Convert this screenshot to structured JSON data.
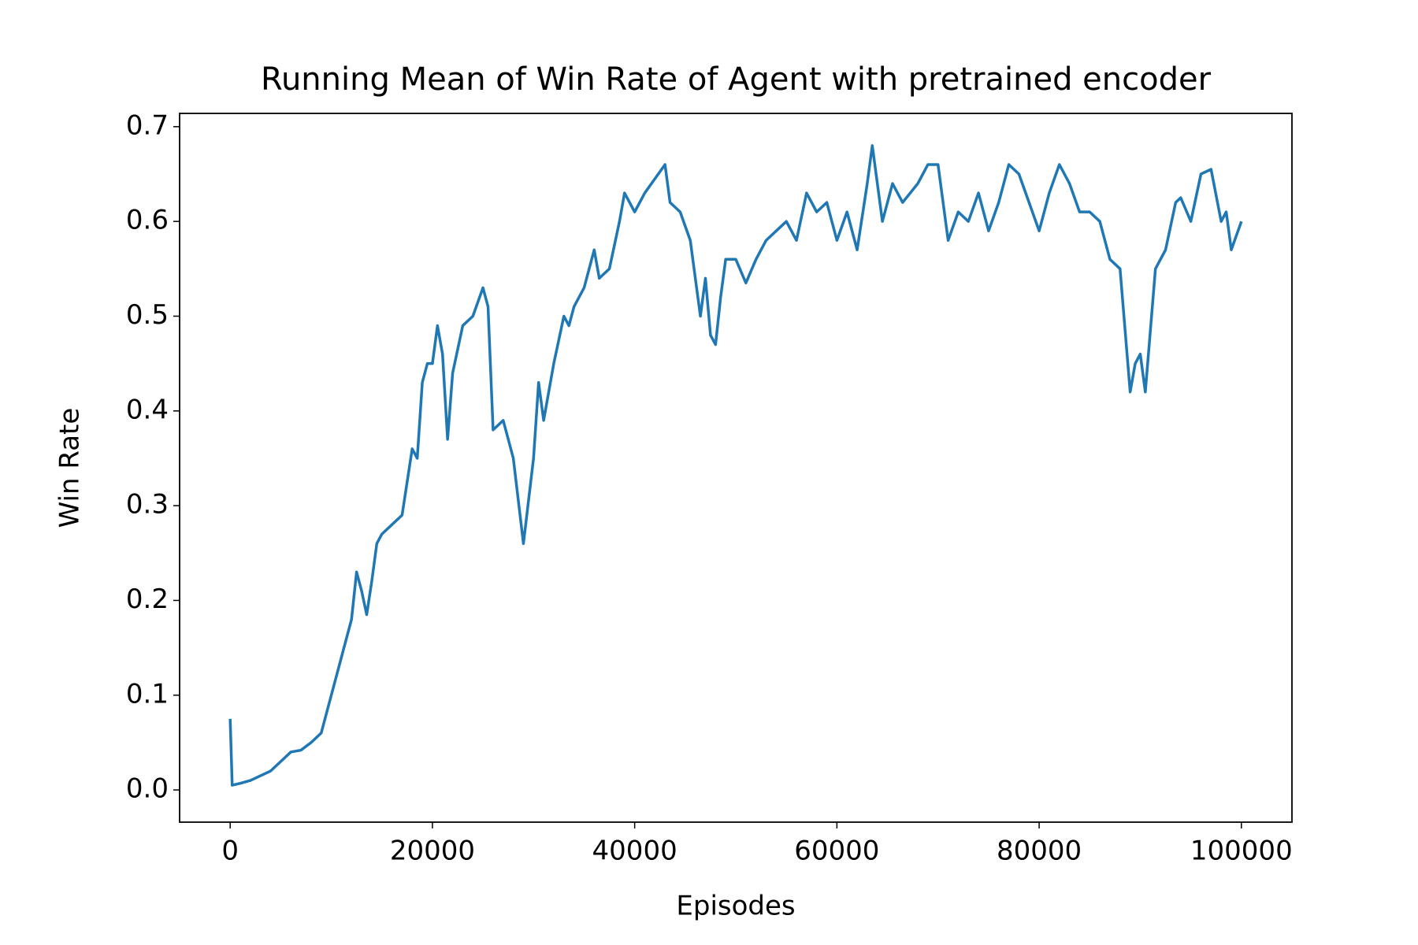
{
  "chart_data": {
    "type": "line",
    "title": "Running Mean of Win Rate of Agent with pretrained encoder",
    "x_label": "Episodes",
    "y_label": "Win Rate",
    "x": [
      0,
      200,
      1000,
      2000,
      3000,
      4000,
      5000,
      6000,
      7000,
      8000,
      9000,
      10000,
      11000,
      12000,
      12500,
      13000,
      13500,
      14000,
      14500,
      15000,
      16000,
      17000,
      18000,
      18500,
      19000,
      19500,
      20000,
      20500,
      21000,
      21500,
      22000,
      23000,
      24000,
      25000,
      25500,
      26000,
      27000,
      28000,
      29000,
      30000,
      30500,
      31000,
      32000,
      33000,
      33500,
      34000,
      35000,
      36000,
      36500,
      37500,
      38500,
      39000,
      40000,
      41000,
      42000,
      43000,
      43500,
      44500,
      45500,
      46500,
      47000,
      47500,
      48000,
      48500,
      49000,
      50000,
      51000,
      52000,
      53000,
      54000,
      55000,
      56000,
      57000,
      58000,
      59000,
      60000,
      61000,
      62000,
      63000,
      63500,
      64500,
      65500,
      66500,
      68000,
      69000,
      70000,
      71000,
      72000,
      73000,
      74000,
      75000,
      76000,
      77000,
      78000,
      79000,
      80000,
      81000,
      82000,
      83000,
      84000,
      85000,
      86000,
      87000,
      88000,
      89000,
      89500,
      90000,
      90500,
      91500,
      92500,
      93500,
      94000,
      95000,
      96000,
      97000,
      98000,
      98500,
      99000,
      100000
    ],
    "series": [
      {
        "color": "#1f77b4",
        "values": [
          0.075,
          0.005,
          0.007,
          0.01,
          0.015,
          0.02,
          0.03,
          0.04,
          0.042,
          0.05,
          0.06,
          0.1,
          0.14,
          0.18,
          0.23,
          0.21,
          0.185,
          0.22,
          0.26,
          0.27,
          0.28,
          0.29,
          0.36,
          0.35,
          0.43,
          0.45,
          0.45,
          0.49,
          0.46,
          0.37,
          0.44,
          0.49,
          0.5,
          0.53,
          0.51,
          0.38,
          0.39,
          0.35,
          0.26,
          0.35,
          0.43,
          0.39,
          0.45,
          0.5,
          0.49,
          0.51,
          0.53,
          0.57,
          0.54,
          0.55,
          0.6,
          0.63,
          0.61,
          0.63,
          0.645,
          0.66,
          0.62,
          0.61,
          0.58,
          0.5,
          0.54,
          0.48,
          0.47,
          0.52,
          0.56,
          0.56,
          0.535,
          0.56,
          0.58,
          0.59,
          0.6,
          0.58,
          0.63,
          0.61,
          0.62,
          0.58,
          0.61,
          0.57,
          0.64,
          0.68,
          0.6,
          0.64,
          0.62,
          0.64,
          0.66,
          0.66,
          0.58,
          0.61,
          0.6,
          0.63,
          0.59,
          0.62,
          0.66,
          0.65,
          0.62,
          0.59,
          0.63,
          0.66,
          0.64,
          0.61,
          0.61,
          0.6,
          0.56,
          0.55,
          0.42,
          0.45,
          0.46,
          0.42,
          0.55,
          0.57,
          0.62,
          0.625,
          0.6,
          0.65,
          0.655,
          0.6,
          0.61,
          0.57,
          0.6
        ]
      }
    ],
    "xlim": [
      -5000,
      105000
    ],
    "xticks": [
      0,
      20000,
      40000,
      60000,
      80000,
      100000
    ],
    "ylim": [
      -0.034,
      0.714
    ],
    "yticks": [
      {
        "value": 0,
        "label": "0.0"
      },
      0.1,
      0.2,
      0.3,
      0.4,
      0.5,
      0.6,
      0.7
    ]
  }
}
